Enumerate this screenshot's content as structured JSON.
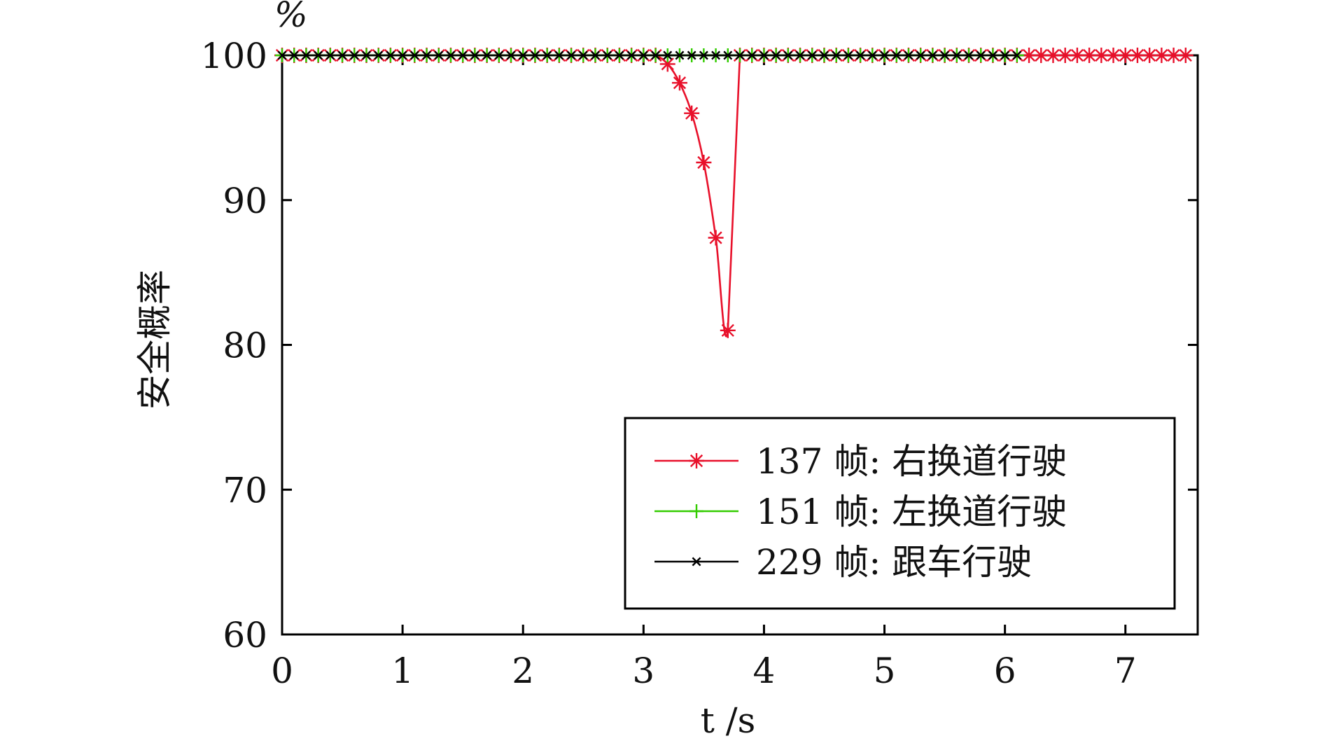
{
  "chart_data": {
    "type": "line",
    "title": "",
    "xlabel": "t /s",
    "ylabel": "安全概率",
    "y_unit": "%",
    "xlim": [
      0,
      7.6
    ],
    "ylim": [
      60,
      100
    ],
    "x_ticks": [
      0,
      1,
      2,
      3,
      4,
      5,
      6,
      7
    ],
    "y_ticks": [
      60,
      70,
      80,
      90,
      100
    ],
    "grid": false,
    "legend_position": "lower-right",
    "series": [
      {
        "name": "137 帧: 右换道行驶",
        "color": "#e8102a",
        "marker": "asterisk",
        "x": [
          0,
          0.1,
          0.2,
          0.3,
          0.4,
          0.5,
          0.6,
          0.7,
          0.8,
          0.9,
          1.0,
          1.1,
          1.2,
          1.3,
          1.4,
          1.5,
          1.6,
          1.7,
          1.8,
          1.9,
          2.0,
          2.1,
          2.2,
          2.3,
          2.4,
          2.5,
          2.6,
          2.7,
          2.8,
          2.9,
          3.0,
          3.1,
          3.2,
          3.3,
          3.4,
          3.5,
          3.6,
          3.7,
          3.8,
          3.9,
          4.0,
          4.1,
          4.2,
          4.3,
          4.4,
          4.5,
          4.6,
          4.7,
          4.8,
          4.9,
          5.0,
          5.1,
          5.2,
          5.3,
          5.4,
          5.5,
          5.6,
          5.7,
          5.8,
          5.9,
          6.0,
          6.1,
          6.2,
          6.3,
          6.4,
          6.5,
          6.6,
          6.7,
          6.8,
          6.9,
          7.0,
          7.1,
          7.2,
          7.3,
          7.4,
          7.5
        ],
        "y": [
          100,
          100,
          100,
          100,
          100,
          100,
          100,
          100,
          100,
          100,
          100,
          100,
          100,
          100,
          100,
          100,
          100,
          100,
          100,
          100,
          100,
          100,
          100,
          100,
          100,
          100,
          100,
          100,
          100,
          100,
          100,
          100,
          99.4,
          98.1,
          96.0,
          92.6,
          87.4,
          81.0,
          100,
          100,
          100,
          100,
          100,
          100,
          100,
          100,
          100,
          100,
          100,
          100,
          100,
          100,
          100,
          100,
          100,
          100,
          100,
          100,
          100,
          100,
          100,
          100,
          100,
          100,
          100,
          100,
          100,
          100,
          100,
          100,
          100,
          100,
          100,
          100,
          100,
          100
        ]
      },
      {
        "name": "151 帧: 左换道行驶",
        "color": "#33cc00",
        "marker": "plus",
        "x": [
          0,
          0.1,
          0.2,
          0.3,
          0.4,
          0.5,
          0.6,
          0.7,
          0.8,
          0.9,
          1.0,
          1.1,
          1.2,
          1.3,
          1.4,
          1.5,
          1.6,
          1.7,
          1.8,
          1.9,
          2.0,
          2.1,
          2.2,
          2.3,
          2.4,
          2.5,
          2.6,
          2.7,
          2.8,
          2.9,
          3.0,
          3.1,
          3.2,
          3.3,
          3.4,
          3.5,
          3.6,
          3.7,
          3.8,
          3.9,
          4.0,
          4.1,
          4.2,
          4.3,
          4.4,
          4.5,
          4.6,
          4.7,
          4.8,
          4.9,
          5.0,
          5.1,
          5.2,
          5.3,
          5.4,
          5.5,
          5.6,
          5.7,
          5.8,
          5.9,
          6.0,
          6.1
        ],
        "y": [
          100,
          100,
          100,
          100,
          100,
          100,
          100,
          100,
          100,
          100,
          100,
          100,
          100,
          100,
          100,
          100,
          100,
          100,
          100,
          100,
          100,
          100,
          100,
          100,
          100,
          100,
          100,
          100,
          100,
          100,
          100,
          100,
          100,
          100,
          100,
          100,
          100,
          100,
          100,
          100,
          100,
          100,
          100,
          100,
          100,
          100,
          100,
          100,
          100,
          100,
          100,
          100,
          100,
          100,
          100,
          100,
          100,
          100,
          100,
          100,
          100,
          100
        ]
      },
      {
        "name": "229 帧: 跟车行驶",
        "color": "#000000",
        "marker": "cross",
        "x": [
          0,
          0.1,
          0.2,
          0.3,
          0.4,
          0.5,
          0.6,
          0.7,
          0.8,
          0.9,
          1.0,
          1.1,
          1.2,
          1.3,
          1.4,
          1.5,
          1.6,
          1.7,
          1.8,
          1.9,
          2.0,
          2.1,
          2.2,
          2.3,
          2.4,
          2.5,
          2.6,
          2.7,
          2.8,
          2.9,
          3.0,
          3.1,
          3.2,
          3.3,
          3.4,
          3.5,
          3.6,
          3.7,
          3.8,
          3.9,
          4.0,
          4.1,
          4.2,
          4.3,
          4.4,
          4.5,
          4.6,
          4.7,
          4.8,
          4.9,
          5.0,
          5.1,
          5.2,
          5.3,
          5.4,
          5.5,
          5.6,
          5.7,
          5.8,
          5.9,
          6.0,
          6.1
        ],
        "y": [
          100,
          100,
          100,
          100,
          100,
          100,
          100,
          100,
          100,
          100,
          100,
          100,
          100,
          100,
          100,
          100,
          100,
          100,
          100,
          100,
          100,
          100,
          100,
          100,
          100,
          100,
          100,
          100,
          100,
          100,
          100,
          100,
          100,
          100,
          100,
          100,
          100,
          100,
          100,
          100,
          100,
          100,
          100,
          100,
          100,
          100,
          100,
          100,
          100,
          100,
          100,
          100,
          100,
          100,
          100,
          100,
          100,
          100,
          100,
          100,
          100,
          100
        ]
      }
    ]
  }
}
